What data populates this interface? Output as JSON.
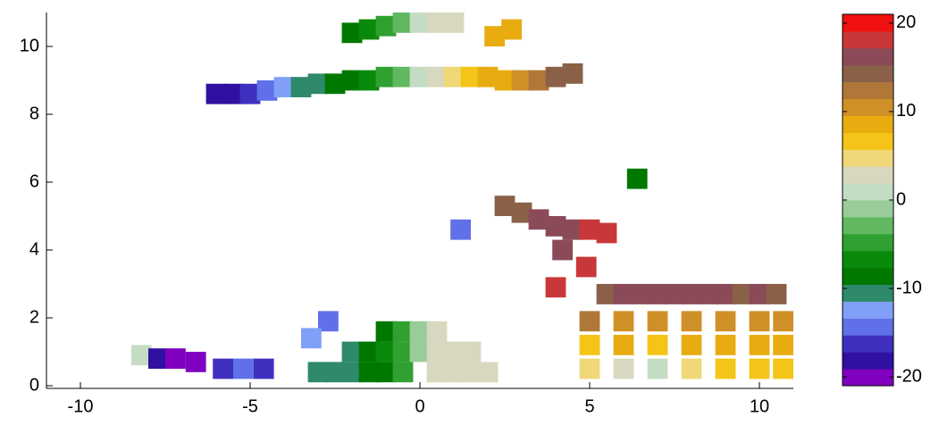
{
  "chart_data": {
    "type": "radar-velocity",
    "x": [
      -6,
      -5.5,
      -5,
      -4.5,
      -4,
      -3.5,
      -3,
      -2.5,
      -2,
      -1.5,
      -1,
      -0.5,
      0,
      0.5,
      1,
      1.5,
      2,
      2.5,
      3,
      3.5,
      4,
      4.5,
      -2,
      -1.5,
      -1,
      -0.5,
      0,
      0.5,
      1,
      2.2,
      2.7,
      2.5,
      3,
      3.5,
      4,
      4.5,
      5,
      5.5,
      4.2,
      4.9,
      4,
      5.5,
      6,
      6.5,
      7,
      7.5,
      8,
      8.5,
      9,
      9.5,
      10,
      10.5,
      5,
      6,
      7,
      8,
      9,
      10,
      10.7,
      5,
      6,
      7,
      8,
      9,
      10,
      10.7,
      5,
      6,
      7,
      8,
      9,
      10,
      10.7,
      -3,
      -2.5,
      -2,
      -1.5,
      -1,
      -0.5,
      0.5,
      1,
      1.5,
      2,
      -2,
      -1.5,
      -1,
      -0.5,
      0,
      0.5,
      1,
      1.5,
      -1,
      -0.5,
      0,
      0.5,
      -2.7,
      -3.2,
      -8.2,
      -7.7,
      -7.2,
      -6.6,
      -5.8,
      -5.2,
      -4.6,
      6.4,
      1.2
    ],
    "y": [
      8.6,
      8.6,
      8.6,
      8.7,
      8.8,
      8.8,
      8.9,
      8.9,
      9.0,
      9.0,
      9.1,
      9.1,
      9.1,
      9.1,
      9.1,
      9.1,
      9.1,
      9.0,
      9.0,
      9.0,
      9.1,
      9.2,
      10.4,
      10.5,
      10.6,
      10.7,
      10.7,
      10.7,
      10.7,
      10.3,
      10.5,
      5.3,
      5.1,
      4.9,
      4.7,
      4.6,
      4.6,
      4.5,
      4,
      3.5,
      2.9,
      2.7,
      2.7,
      2.7,
      2.7,
      2.7,
      2.7,
      2.7,
      2.7,
      2.7,
      2.7,
      2.7,
      1.9,
      1.9,
      1.9,
      1.9,
      1.9,
      1.9,
      1.9,
      1.2,
      1.2,
      1.2,
      1.2,
      1.2,
      1.2,
      1.2,
      0.5,
      0.5,
      0.5,
      0.5,
      0.5,
      0.5,
      0.5,
      0.4,
      0.4,
      0.4,
      0.4,
      0.4,
      0.4,
      0.4,
      0.4,
      0.4,
      0.4,
      1,
      1,
      1,
      1,
      1,
      1,
      1,
      1,
      1.6,
      1.6,
      1.6,
      1.6,
      1.9,
      1.4,
      0.9,
      0.8,
      0.8,
      0.7,
      0.5,
      0.5,
      0.5,
      6.1,
      4.6
    ],
    "values": [
      -19,
      -18,
      -16,
      -14,
      -12,
      -10,
      -10,
      -9,
      -8,
      -6,
      -5,
      -2,
      0,
      2,
      4,
      6,
      8,
      9,
      10,
      12,
      14,
      15,
      -8,
      -7,
      -5,
      -3,
      0,
      2,
      3,
      8,
      9,
      14,
      15,
      16,
      17,
      17,
      18,
      18,
      17,
      18,
      18,
      15,
      16,
      17,
      17,
      16,
      16,
      17,
      16,
      15,
      16,
      15,
      12,
      11,
      10,
      11,
      10,
      11,
      10,
      6,
      8,
      7,
      9,
      8,
      9,
      8,
      4,
      3,
      0,
      5,
      6,
      7,
      6,
      -11,
      -10,
      -10,
      -9,
      -8,
      -5,
      3,
      3,
      3,
      3,
      -10,
      -9,
      -7,
      -4,
      -1,
      2,
      3,
      3,
      -9,
      -5,
      -1,
      2,
      -15,
      -13,
      1,
      -19,
      -20,
      -20,
      -16,
      -14,
      -16,
      -9,
      -15
    ],
    "xlim": [
      -11,
      11
    ],
    "xticks": [
      -10,
      -5,
      0,
      5,
      10
    ],
    "ylim": [
      0,
      11
    ],
    "yticks": [
      0,
      2,
      4,
      6,
      8,
      10
    ],
    "clim": [
      -21,
      21
    ],
    "colorbar_ticks": [
      -20,
      -10,
      0,
      10,
      20
    ],
    "colormap": [
      "#8000c0",
      "#3010a0",
      "#4030c0",
      "#6070e8",
      "#80a0f8",
      "#2e8a6a",
      "#007800",
      "#0a8a0a",
      "#30a030",
      "#60b860",
      "#98cc98",
      "#c4dcc4",
      "#d8d8c0",
      "#f0d878",
      "#f4c418",
      "#e8ac10",
      "#d09028",
      "#b07838",
      "#8a6048",
      "#8a4a58",
      "#c83838",
      "#f01010"
    ]
  }
}
